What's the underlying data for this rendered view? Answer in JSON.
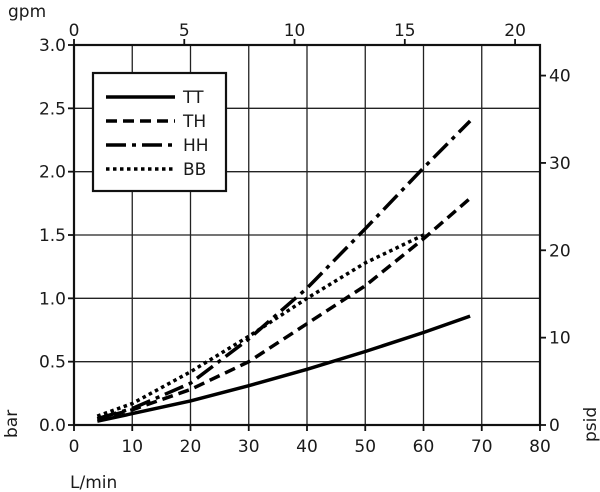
{
  "chart_data": {
    "type": "line",
    "title": "",
    "xlabel": "L/min",
    "ylabel": "bar",
    "x2label": "gpm",
    "y2label": "psid",
    "xlim": [
      0,
      80
    ],
    "ylim": [
      0,
      3.0
    ],
    "x2lim": [
      0,
      21.13
    ],
    "y2lim": [
      0,
      43.5
    ],
    "xticks": [
      "0",
      "10",
      "20",
      "30",
      "40",
      "50",
      "60",
      "70",
      "80"
    ],
    "yticks": [
      "0.0",
      "0.5",
      "1.0",
      "1.5",
      "2.0",
      "2.5",
      "3.0"
    ],
    "x2ticks": [
      "0",
      "5",
      "10",
      "15",
      "20"
    ],
    "y2ticks": [
      "0",
      "10",
      "20",
      "30",
      "40"
    ],
    "grid": true,
    "legend_position": "top-left",
    "series": [
      {
        "name": "TT",
        "dash": "solid",
        "x": [
          4,
          10,
          20,
          30,
          40,
          50,
          60,
          68
        ],
        "y": [
          0.03,
          0.09,
          0.19,
          0.31,
          0.44,
          0.58,
          0.73,
          0.86
        ]
      },
      {
        "name": "TH",
        "dash": "dashed",
        "x": [
          4,
          10,
          20,
          30,
          40,
          50,
          60,
          68
        ],
        "y": [
          0.05,
          0.12,
          0.28,
          0.5,
          0.8,
          1.1,
          1.47,
          1.79
        ]
      },
      {
        "name": "HH",
        "dash": "dashdot",
        "x": [
          4,
          10,
          20,
          30,
          40,
          50,
          60,
          68
        ],
        "y": [
          0.05,
          0.13,
          0.33,
          0.68,
          1.08,
          1.55,
          2.03,
          2.4
        ]
      },
      {
        "name": "BB",
        "dash": "dotted",
        "x": [
          4,
          10,
          20,
          30,
          40,
          50,
          60
        ],
        "y": [
          0.07,
          0.17,
          0.42,
          0.7,
          1.0,
          1.28,
          1.5
        ]
      }
    ]
  }
}
